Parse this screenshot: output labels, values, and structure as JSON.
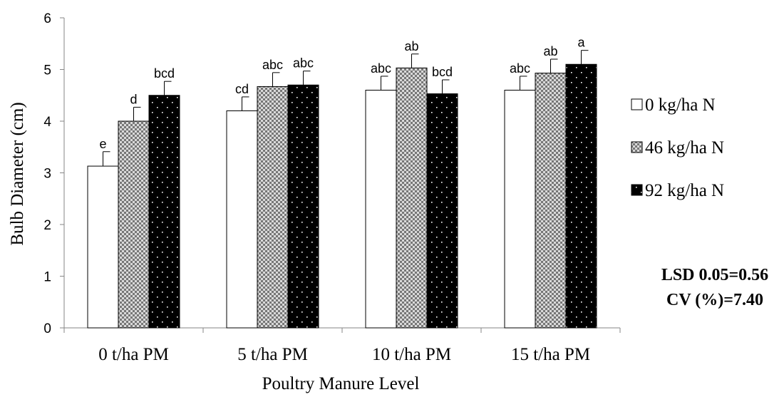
{
  "chart_data": {
    "type": "bar",
    "title": "",
    "xlabel": "Poultry Manure Level",
    "ylabel": "Bulb Diameter (cm)",
    "ylim": [
      0,
      6
    ],
    "yticks": [
      "0",
      "1",
      "2",
      "3",
      "4",
      "5",
      "6"
    ],
    "grid": false,
    "legend_position": "right",
    "categories": [
      "0 t/ha PM",
      "5 t/ha PM",
      "10 t/ha PM",
      "15 t/ha PM"
    ],
    "series": [
      {
        "name": "0 kg/ha N",
        "pattern": "white",
        "values": [
          3.13,
          4.2,
          4.6,
          4.6
        ],
        "errors": [
          0.28,
          0.27,
          0.27,
          0.27
        ],
        "letters": [
          "e",
          "cd",
          "abc",
          "abc"
        ]
      },
      {
        "name": "46 kg/ha N",
        "pattern": "checkered",
        "values": [
          4.0,
          4.67,
          5.03,
          4.93
        ],
        "errors": [
          0.27,
          0.27,
          0.27,
          0.27
        ],
        "letters": [
          "d",
          "abc",
          "ab",
          "ab"
        ]
      },
      {
        "name": "92 kg/ha N",
        "pattern": "black-dotted",
        "values": [
          4.5,
          4.7,
          4.53,
          5.1
        ],
        "errors": [
          0.27,
          0.27,
          0.27,
          0.27
        ],
        "letters": [
          "bcd",
          "abc",
          "bcd",
          "a"
        ]
      }
    ],
    "annotations": [
      "LSD 0.05=0.56",
      "CV (%)=7.40"
    ]
  }
}
